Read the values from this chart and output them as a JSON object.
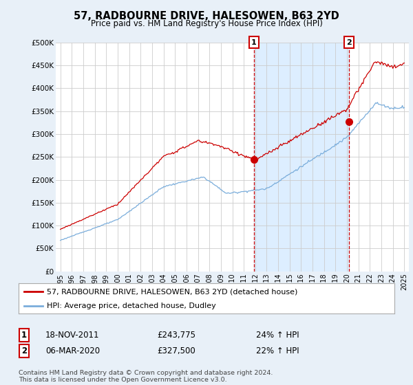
{
  "title": "57, RADBOURNE DRIVE, HALESOWEN, B63 2YD",
  "subtitle": "Price paid vs. HM Land Registry's House Price Index (HPI)",
  "ylim": [
    0,
    500000
  ],
  "yticks": [
    0,
    50000,
    100000,
    150000,
    200000,
    250000,
    300000,
    350000,
    400000,
    450000,
    500000
  ],
  "ytick_labels": [
    "£0",
    "£50K",
    "£100K",
    "£150K",
    "£200K",
    "£250K",
    "£300K",
    "£350K",
    "£400K",
    "£450K",
    "£500K"
  ],
  "property_color": "#cc0000",
  "hpi_color": "#7aaddb",
  "shade_color": "#ddeeff",
  "legend1": "57, RADBOURNE DRIVE, HALESOWEN, B63 2YD (detached house)",
  "legend2": "HPI: Average price, detached house, Dudley",
  "sale1_date": "18-NOV-2011",
  "sale1_price": "£243,775",
  "sale1_hpi": "24% ↑ HPI",
  "sale2_date": "06-MAR-2020",
  "sale2_price": "£327,500",
  "sale2_hpi": "22% ↑ HPI",
  "footer": "Contains HM Land Registry data © Crown copyright and database right 2024.\nThis data is licensed under the Open Government Licence v3.0.",
  "bg_color": "#e8f0f8",
  "plot_bg": "#ffffff",
  "marker1_x": 2011.88,
  "marker1_y": 243775,
  "marker2_x": 2020.18,
  "marker2_y": 327500,
  "sale1_x": 2011.88,
  "sale2_x": 2020.18,
  "xmin": 1995,
  "xmax": 2025,
  "grid_color": "#cccccc",
  "annot_box_color": "#cc0000"
}
